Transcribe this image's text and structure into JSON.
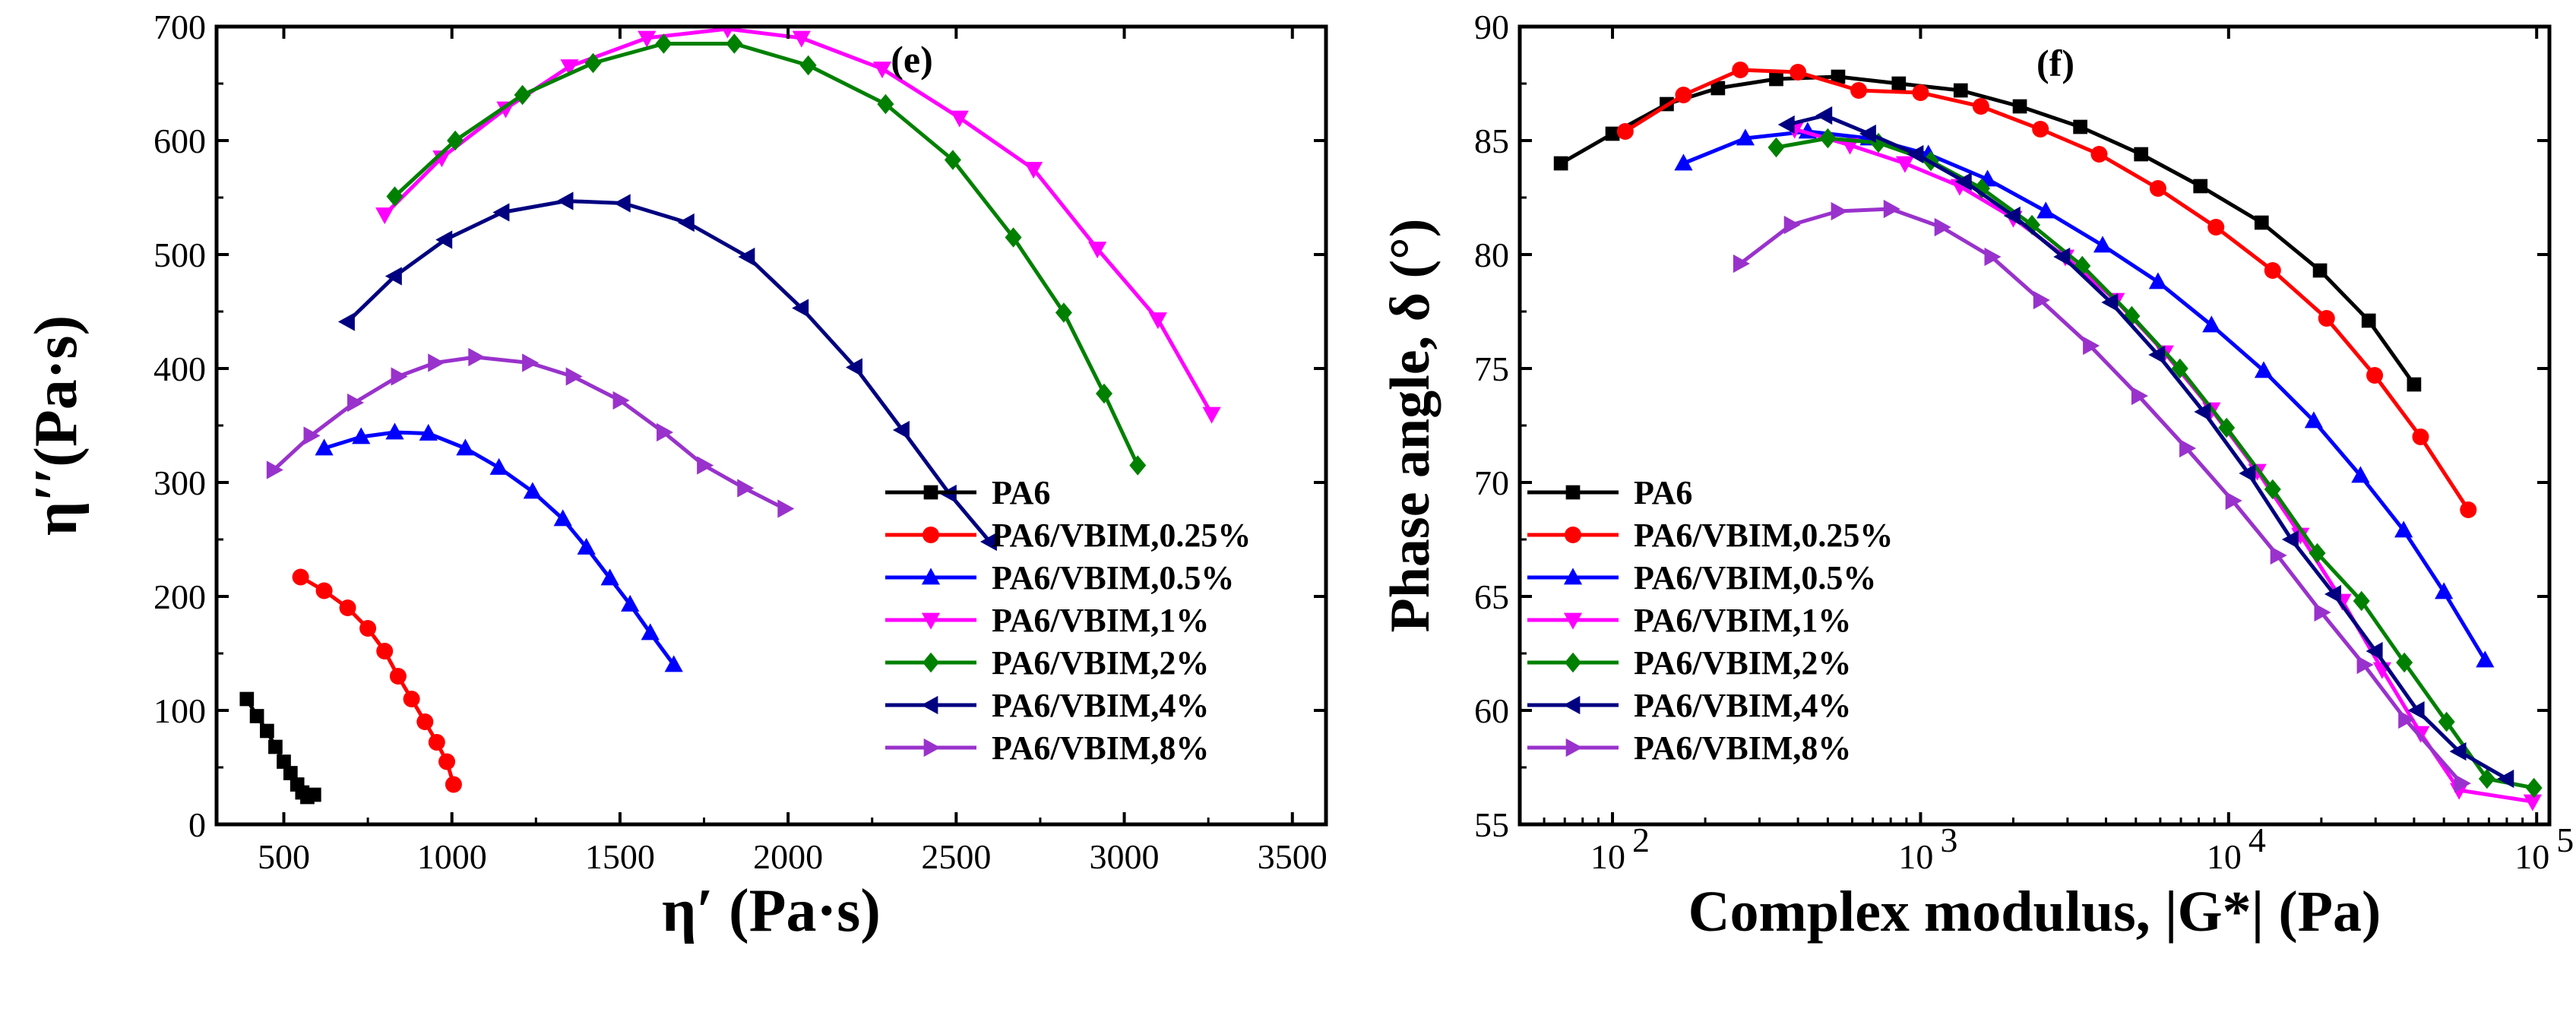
{
  "chart_data": [
    {
      "type": "line",
      "panel_label": "(e)",
      "xlabel": "η′ (Pa·s)",
      "ylabel": "η′′(Pa·s)",
      "xlim": [
        300,
        3600
      ],
      "ylim": [
        0,
        700
      ],
      "xticks": [
        500,
        1000,
        1500,
        2000,
        2500,
        3000,
        3500
      ],
      "yticks": [
        0,
        100,
        200,
        300,
        400,
        500,
        600,
        700
      ],
      "legend_position": "bottom-right",
      "series": [
        {
          "name": "PA6",
          "color": "#000000",
          "marker": "square",
          "x": [
            390,
            420,
            450,
            475,
            500,
            520,
            540,
            555,
            570,
            590
          ],
          "y": [
            110,
            95,
            82,
            68,
            55,
            45,
            35,
            28,
            24,
            26
          ]
        },
        {
          "name": "PA6/VBIM,0.25%",
          "color": "#ff0000",
          "marker": "circle",
          "x": [
            550,
            620,
            690,
            750,
            800,
            840,
            880,
            920,
            955,
            985,
            1005
          ],
          "y": [
            217,
            205,
            190,
            172,
            152,
            130,
            110,
            90,
            72,
            55,
            35
          ]
        },
        {
          "name": "PA6/VBIM,0.5%",
          "color": "#0000ff",
          "marker": "triangle-up",
          "x": [
            620,
            730,
            830,
            930,
            1040,
            1140,
            1240,
            1330,
            1400,
            1470,
            1530,
            1590,
            1660
          ],
          "y": [
            330,
            340,
            344,
            343,
            330,
            313,
            292,
            268,
            243,
            216,
            193,
            168,
            140
          ]
        },
        {
          "name": "PA6/VBIM,1%",
          "color": "#ff00ff",
          "marker": "triangle-down",
          "x": [
            800,
            970,
            1160,
            1350,
            1580,
            1820,
            2040,
            2280,
            2510,
            2730,
            2920,
            3100,
            3260
          ],
          "y": [
            535,
            585,
            628,
            665,
            690,
            698,
            690,
            663,
            620,
            575,
            505,
            443,
            360
          ]
        },
        {
          "name": "PA6/VBIM,2%",
          "color": "#008000",
          "marker": "diamond",
          "x": [
            830,
            1010,
            1210,
            1420,
            1630,
            1840,
            2060,
            2290,
            2490,
            2670,
            2820,
            2940,
            3040
          ],
          "y": [
            551,
            600,
            640,
            668,
            685,
            685,
            666,
            632,
            583,
            515,
            449,
            378,
            315
          ]
        },
        {
          "name": "PA6/VBIM,4%",
          "color": "#000080",
          "marker": "triangle-left",
          "x": [
            690,
            830,
            980,
            1150,
            1340,
            1510,
            1700,
            1880,
            2040,
            2200,
            2340,
            2480,
            2600
          ],
          "y": [
            441,
            481,
            513,
            537,
            547,
            545,
            528,
            498,
            453,
            401,
            346,
            290,
            248
          ]
        },
        {
          "name": "PA6/VBIM,8%",
          "color": "#9932cc",
          "marker": "triangle-right",
          "x": [
            470,
            580,
            710,
            840,
            950,
            1070,
            1230,
            1360,
            1500,
            1630,
            1750,
            1870,
            1990
          ],
          "y": [
            311,
            341,
            370,
            393,
            405,
            410,
            405,
            393,
            372,
            344,
            315,
            295,
            277
          ]
        }
      ]
    },
    {
      "type": "line",
      "panel_label": "(f)",
      "xlabel": "Complex modulus, |G*| (Pa)",
      "ylabel": "Phase angle, δ (°)",
      "xscale": "log",
      "xlim": [
        50,
        110000
      ],
      "ylim": [
        55,
        90
      ],
      "xticks": [
        100,
        1000,
        10000,
        100000
      ],
      "xticklabels": [
        "10",
        "10",
        "10",
        "10"
      ],
      "xtickexponents": [
        "2",
        "3",
        "4",
        "5"
      ],
      "yticks": [
        55,
        60,
        65,
        70,
        75,
        80,
        85,
        90
      ],
      "legend_position": "bottom-left",
      "series": [
        {
          "name": "PA6",
          "color": "#000000",
          "marker": "square",
          "x": [
            68,
            100,
            150,
            220,
            340,
            540,
            850,
            1350,
            2100,
            3300,
            5200,
            8100,
            12800,
            19800,
            28500,
            40000
          ],
          "y": [
            84.0,
            85.3,
            86.6,
            87.3,
            87.7,
            87.8,
            87.5,
            87.2,
            86.5,
            85.6,
            84.4,
            83.0,
            81.4,
            79.3,
            77.1,
            74.3
          ]
        },
        {
          "name": "PA6/VBIM,0.25%",
          "color": "#ff0000",
          "marker": "circle",
          "x": [
            110,
            170,
            260,
            400,
            630,
            1000,
            1570,
            2450,
            3800,
            5900,
            9100,
            13900,
            20800,
            29800,
            42000,
            60000
          ],
          "y": [
            85.4,
            87.0,
            88.1,
            88.0,
            87.2,
            87.1,
            86.5,
            85.5,
            84.4,
            82.9,
            81.2,
            79.3,
            77.2,
            74.7,
            72.0,
            68.8
          ]
        },
        {
          "name": "PA6/VBIM,0.5%",
          "color": "#0000ff",
          "marker": "triangle-up",
          "x": [
            170,
            270,
            430,
            680,
            1060,
            1650,
            2550,
            3900,
            5900,
            8800,
            13000,
            18900,
            26800,
            37000,
            50000,
            68000
          ],
          "y": [
            84.0,
            85.1,
            85.4,
            85.1,
            84.4,
            83.3,
            81.9,
            80.4,
            78.8,
            76.9,
            74.9,
            72.7,
            70.3,
            67.9,
            65.2,
            62.2
          ]
        },
        {
          "name": "PA6/VBIM,1%",
          "color": "#ff00ff",
          "marker": "triangle-down",
          "x": [
            390,
            590,
            890,
            1340,
            2000,
            2950,
            4300,
            6200,
            8800,
            12400,
            17100,
            23400,
            31500,
            42000,
            56000,
            97000
          ],
          "y": [
            85.5,
            84.8,
            84.0,
            83.0,
            81.6,
            79.9,
            78.0,
            75.7,
            73.2,
            70.5,
            67.7,
            64.8,
            61.8,
            59.0,
            56.5,
            56.0
          ]
        },
        {
          "name": "PA6/VBIM,2%",
          "color": "#008000",
          "marker": "diamond",
          "x": [
            340,
            500,
            730,
            1080,
            1580,
            2300,
            3350,
            4850,
            6950,
            9850,
            13900,
            19400,
            27000,
            37200,
            51000,
            69000,
            98000
          ],
          "y": [
            84.7,
            85.1,
            84.9,
            84.1,
            82.9,
            81.3,
            79.5,
            77.3,
            75.0,
            72.4,
            69.7,
            66.9,
            64.8,
            62.1,
            59.5,
            57.0,
            56.6
          ]
        },
        {
          "name": "PA6/VBIM,4%",
          "color": "#000080",
          "marker": "triangle-left",
          "x": [
            370,
            490,
            680,
            970,
            1390,
            2000,
            2900,
            4150,
            5900,
            8300,
            11600,
            16000,
            22000,
            30000,
            41000,
            56000,
            80000
          ],
          "y": [
            85.7,
            86.1,
            85.3,
            84.4,
            83.2,
            81.7,
            79.9,
            77.9,
            75.6,
            73.1,
            70.4,
            67.5,
            65.1,
            62.6,
            60.0,
            58.2,
            57.0
          ]
        },
        {
          "name": "PA6/VBIM,8%",
          "color": "#9932cc",
          "marker": "triangle-right",
          "x": [
            260,
            380,
            540,
            800,
            1170,
            1700,
            2450,
            3550,
            5100,
            7300,
            10300,
            14400,
            20000,
            27500,
            37500,
            57000
          ],
          "y": [
            79.6,
            81.3,
            81.9,
            82.0,
            81.2,
            79.9,
            78.0,
            76.0,
            73.8,
            71.5,
            69.2,
            66.8,
            64.3,
            62.0,
            59.6,
            56.8
          ]
        }
      ]
    }
  ]
}
